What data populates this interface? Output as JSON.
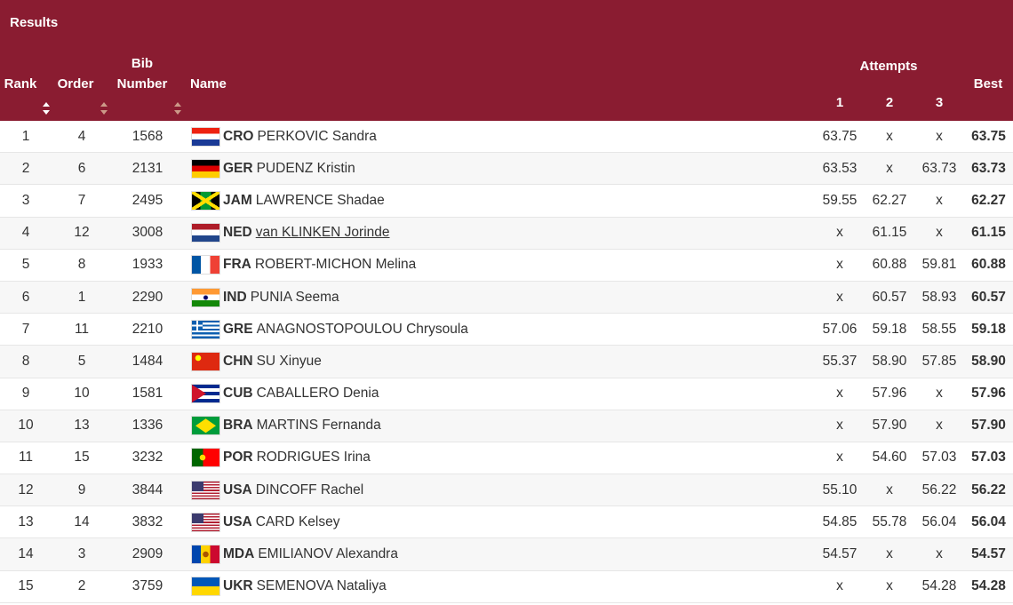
{
  "header": {
    "title": "Results",
    "columns": {
      "rank": "Rank",
      "order": "Order",
      "bib": "Bib Number",
      "name": "Name",
      "attempts": "Attempts",
      "attempt_numbers": [
        "1",
        "2",
        "3"
      ],
      "best": "Best"
    }
  },
  "table": {
    "rows": [
      [
        "1",
        "4",
        "1568",
        "CRO",
        "PERKOVIC Sandra",
        "63.75",
        "x",
        "x",
        "63.75"
      ],
      [
        "2",
        "6",
        "2131",
        "GER",
        "PUDENZ Kristin",
        "63.53",
        "x",
        "63.73",
        "63.73"
      ],
      [
        "3",
        "7",
        "2495",
        "JAM",
        "LAWRENCE Shadae",
        "59.55",
        "62.27",
        "x",
        "62.27"
      ],
      [
        "4",
        "12",
        "3008",
        "NED",
        "van KLINKEN Jorinde",
        "x",
        "61.15",
        "x",
        "61.15"
      ],
      [
        "5",
        "8",
        "1933",
        "FRA",
        "ROBERT-MICHON Melina",
        "x",
        "60.88",
        "59.81",
        "60.88"
      ],
      [
        "6",
        "1",
        "2290",
        "IND",
        "PUNIA Seema",
        "x",
        "60.57",
        "58.93",
        "60.57"
      ],
      [
        "7",
        "11",
        "2210",
        "GRE",
        "ANAGNOSTOPOULOU Chrysoula",
        "57.06",
        "59.18",
        "58.55",
        "59.18"
      ],
      [
        "8",
        "5",
        "1484",
        "CHN",
        "SU Xinyue",
        "55.37",
        "58.90",
        "57.85",
        "58.90"
      ],
      [
        "9",
        "10",
        "1581",
        "CUB",
        "CABALLERO Denia",
        "x",
        "57.96",
        "x",
        "57.96"
      ],
      [
        "10",
        "13",
        "1336",
        "BRA",
        "MARTINS Fernanda",
        "x",
        "57.90",
        "x",
        "57.90"
      ],
      [
        "11",
        "15",
        "3232",
        "POR",
        "RODRIGUES Irina",
        "x",
        "54.60",
        "57.03",
        "57.03"
      ],
      [
        "12",
        "9",
        "3844",
        "USA",
        "DINCOFF Rachel",
        "55.10",
        "x",
        "56.22",
        "56.22"
      ],
      [
        "13",
        "14",
        "3832",
        "USA",
        "CARD Kelsey",
        "54.85",
        "55.78",
        "56.04",
        "56.04"
      ],
      [
        "14",
        "3",
        "2909",
        "MDA",
        "EMILIANOV Alexandra",
        "54.57",
        "x",
        "x",
        "54.57"
      ],
      [
        "15",
        "2",
        "3759",
        "UKR",
        "SEMENOVA Nataliya",
        "x",
        "x",
        "54.28",
        "54.28"
      ]
    ]
  }
}
